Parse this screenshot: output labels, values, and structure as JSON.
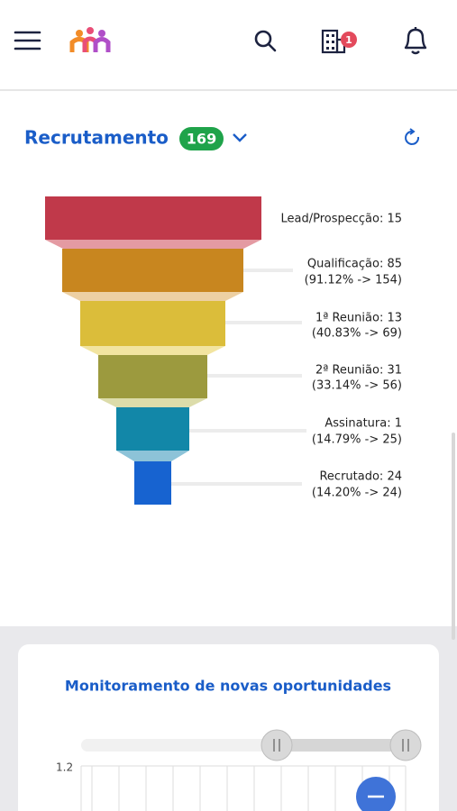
{
  "header": {
    "notification_badge": "1"
  },
  "section": {
    "title": "Recrutamento",
    "count": "169"
  },
  "funnel": {
    "stages": [
      {
        "label": "Lead/Prospecção: 15"
      },
      {
        "label": "Qualificação: 85",
        "detail": "(91.12% -> 154)"
      },
      {
        "label": "1ª Reunião: 13",
        "detail": "(40.83% -> 69)"
      },
      {
        "label": "2ª Reunião: 31",
        "detail": "(33.14% -> 56)"
      },
      {
        "label": "Assinatura: 1",
        "detail": "(14.79% -> 25)"
      },
      {
        "label": "Recrutado: 24",
        "detail": "(14.20% -> 24)"
      }
    ]
  },
  "card": {
    "title": "Monitoramento de novas oportunidades",
    "y_axis_top_label": "1.2"
  }
}
